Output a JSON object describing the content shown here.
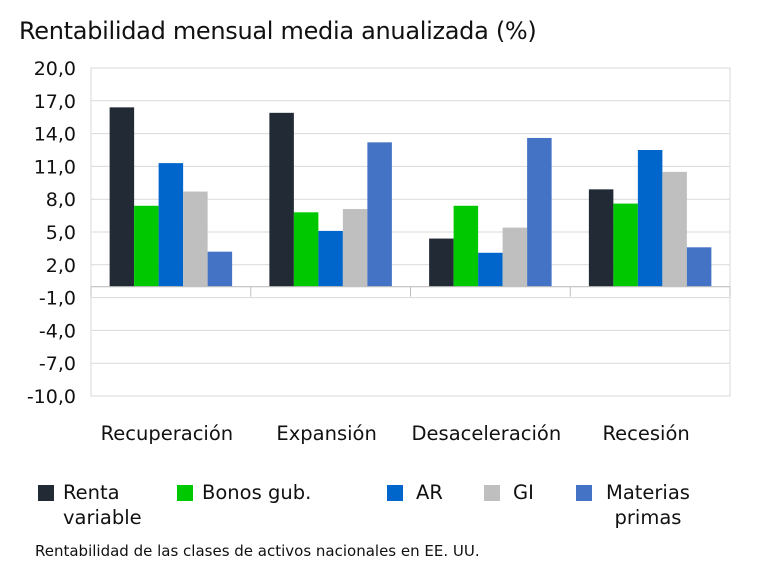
{
  "chart_data": {
    "type": "bar",
    "title": "Rentabilidad mensual media anualizada (%)",
    "xlabel": "",
    "ylabel": "",
    "categories": [
      "Recuperación",
      "Expansión",
      "Desaceleración",
      "Recesión"
    ],
    "series": [
      {
        "name": "Renta variable",
        "legend_label": "Renta\nvariable",
        "color": "#222a35",
        "values": [
          16.4,
          15.9,
          4.4,
          8.9
        ]
      },
      {
        "name": "Bonos gub.",
        "legend_label": "Bonos gub.",
        "color": "#00c800",
        "values": [
          7.4,
          6.8,
          7.4,
          7.6
        ]
      },
      {
        "name": "AR",
        "legend_label": "AR",
        "color": "#0066cc",
        "values": [
          11.3,
          5.1,
          3.1,
          12.5
        ]
      },
      {
        "name": "GI",
        "legend_label": "GI",
        "color": "#bfbfbf",
        "values": [
          8.7,
          7.1,
          5.4,
          10.5
        ]
      },
      {
        "name": "Materias primas",
        "legend_label": "Materias\nprimas",
        "color": "#4472c4",
        "values": [
          3.2,
          13.2,
          13.6,
          3.6
        ]
      }
    ],
    "ylim": [
      -10,
      20
    ],
    "yticks": [
      20,
      17,
      14,
      11,
      8,
      5,
      2,
      -1,
      -4,
      -7,
      -10
    ],
    "ytick_labels": [
      "20,0",
      "17,0",
      "14,0",
      "11,0",
      "8,0",
      "5,0",
      "2,0",
      "-1,0",
      "-4,0",
      "-7,0",
      "-10,0"
    ],
    "grid": true,
    "legend_position": "bottom",
    "footnote": "Rentabilidad de las clases de activos nacionales en EE. UU."
  }
}
